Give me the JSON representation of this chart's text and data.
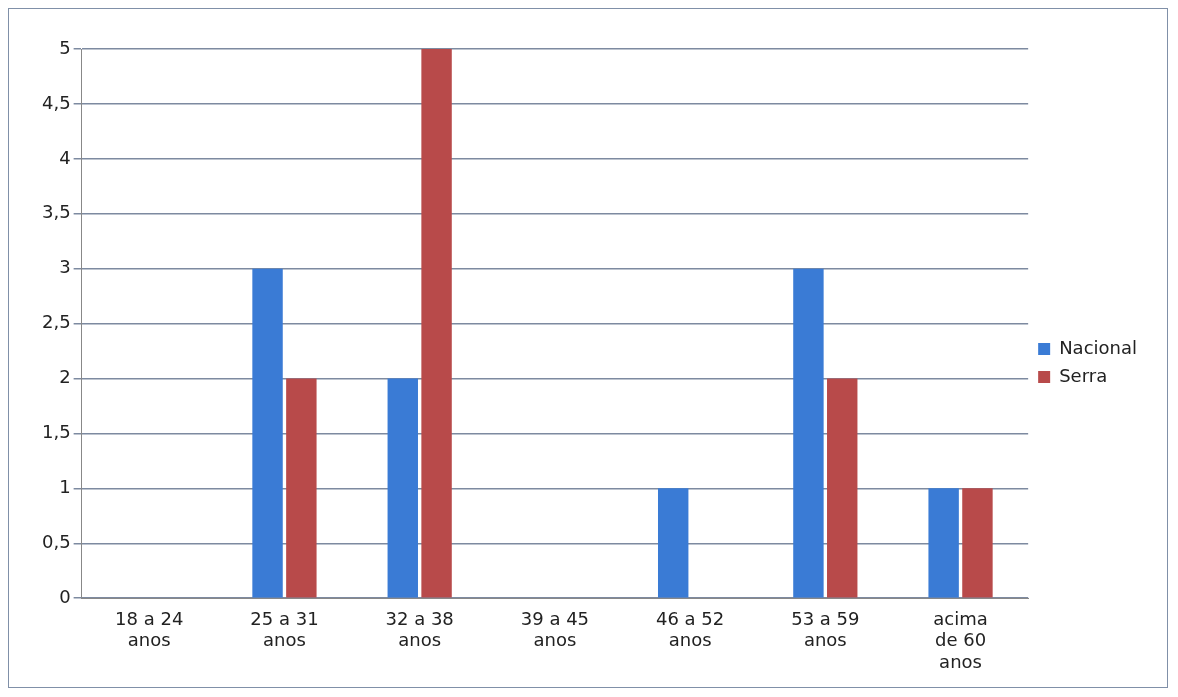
{
  "chart_data": {
    "type": "bar",
    "categories": [
      "18 a 24 anos",
      "25 a 31 anos",
      "32 a 38 anos",
      "39 a 45 anos",
      "46 a 52 anos",
      "53 a 59 anos",
      "acima de 60 anos"
    ],
    "series": [
      {
        "name": "Nacional",
        "color": "#3a7bd5",
        "values": [
          0,
          3,
          2,
          0,
          1,
          3,
          1
        ]
      },
      {
        "name": "Serra",
        "color": "#b84a4a",
        "values": [
          0,
          2,
          5,
          0,
          0,
          2,
          1
        ]
      }
    ],
    "ylim": [
      0,
      5
    ],
    "yticks": [
      0,
      {
        "value": 0.5,
        "label": "0,5"
      },
      1,
      {
        "value": 1.5,
        "label": "1,5"
      },
      2,
      {
        "value": 2.5,
        "label": "2,5"
      },
      3,
      {
        "value": 3.5,
        "label": "3,5"
      },
      4,
      {
        "value": 4.5,
        "label": "4,5"
      },
      5
    ],
    "grid": "y",
    "legend": "right"
  }
}
